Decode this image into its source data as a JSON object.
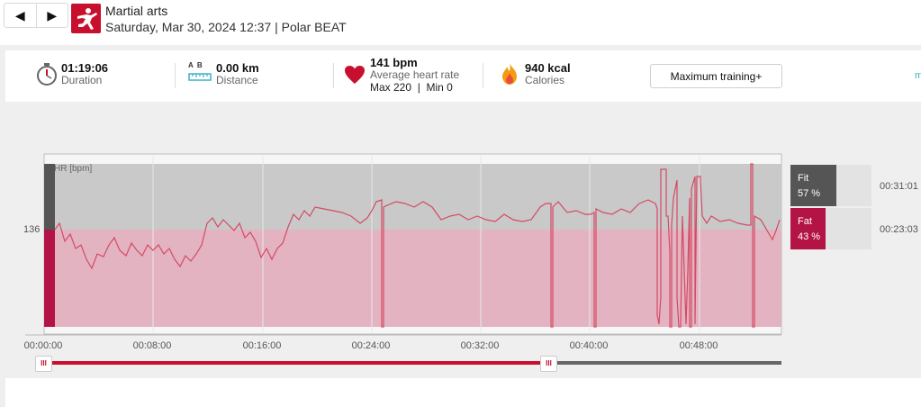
{
  "header": {
    "prev_symbol": "◀",
    "next_symbol": "▶",
    "sport": "Martial arts",
    "subtitle": "Saturday, Mar 30, 2024 12:37 | Polar BEAT"
  },
  "summary": {
    "duration_value": "01:19:06",
    "duration_label": "Duration",
    "distance_ab": "A  B",
    "distance_value": "0.00 km",
    "distance_label": "Distance",
    "hr_value": "141 bpm",
    "hr_label": "Average heart rate",
    "hr_sub": "Max 220  |  Min 0",
    "cal_value": "940 kcal",
    "cal_label": "Calories",
    "training_button": "Maximum training+",
    "more_link": "m"
  },
  "chart": {
    "hr_axis_label": "HR [bpm]",
    "y_tick_label": "136",
    "x_ticks": [
      "00:00:00",
      "00:08:00",
      "00:16:00",
      "00:24:00",
      "00:32:00",
      "00:40:00",
      "00:48:00"
    ],
    "colors": {
      "fit": "#c9c9c9",
      "fat": "#e3b3c2",
      "line": "#d44a63",
      "accent": "#c8102e"
    }
  },
  "zones": [
    {
      "name": "Fit",
      "pct": "57 %",
      "time": "00:31:01",
      "fraction": 0.57,
      "color": "#555555"
    },
    {
      "name": "Fat",
      "pct": "43 %",
      "time": "00:23:03",
      "fraction": 0.43,
      "color": "#b31445"
    }
  ],
  "timeline": {
    "handle_start_symbol": "III",
    "handle_end_symbol": "III"
  },
  "chart_data": {
    "type": "line",
    "ylabel": "HR [bpm]",
    "y_ticks": [
      136
    ],
    "x_ticks": [
      "00:00:00",
      "00:08:00",
      "00:16:00",
      "00:24:00",
      "00:32:00",
      "00:40:00",
      "00:48:00"
    ],
    "series": [
      {
        "values": [
          136,
          132,
          128,
          126,
          130,
          131,
          129,
          128,
          129,
          130,
          140,
          139,
          134,
          132,
          128,
          134,
          143,
          144,
          143,
          145,
          140,
          144,
          143,
          144,
          146,
          141,
          143,
          145,
          146,
          140,
          143,
          135,
          145,
          150,
          146
        ]
      }
    ]
  }
}
